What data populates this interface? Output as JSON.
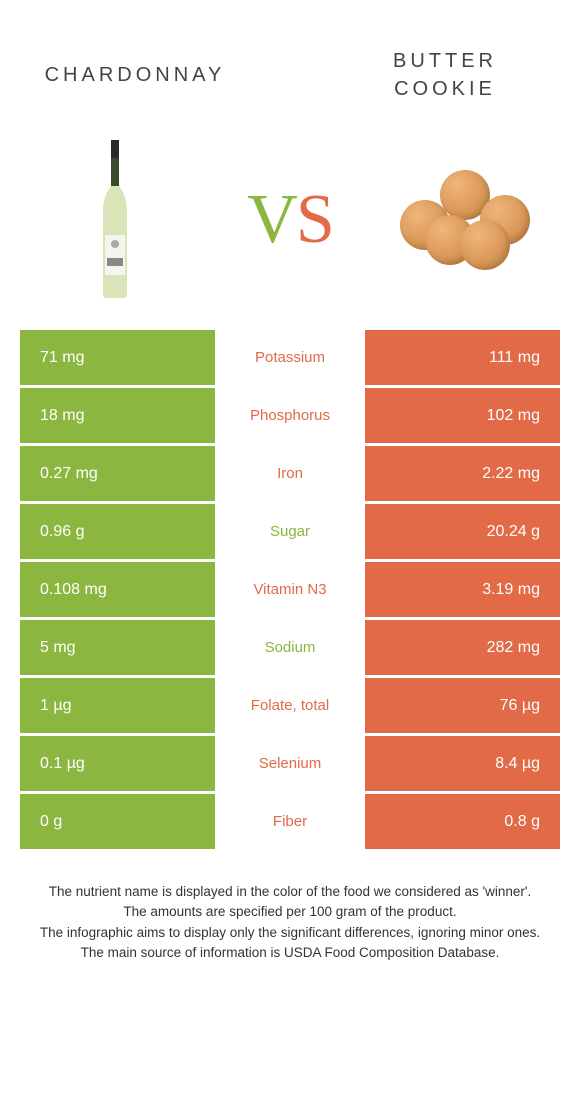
{
  "header": {
    "left_title": "Chardonnay",
    "right_title_line1": "butter",
    "right_title_line2": "cookie"
  },
  "vs": {
    "v": "V",
    "s": "S"
  },
  "colors": {
    "left": "#8bb63f",
    "right": "#e26a47",
    "text": "#333333",
    "white": "#ffffff"
  },
  "rows": [
    {
      "left": "71 mg",
      "label": "Potassium",
      "right": "111 mg",
      "winner": "right"
    },
    {
      "left": "18 mg",
      "label": "Phosphorus",
      "right": "102 mg",
      "winner": "right"
    },
    {
      "left": "0.27 mg",
      "label": "Iron",
      "right": "2.22 mg",
      "winner": "right"
    },
    {
      "left": "0.96 g",
      "label": "Sugar",
      "right": "20.24 g",
      "winner": "left"
    },
    {
      "left": "0.108 mg",
      "label": "Vitamin N3",
      "right": "3.19 mg",
      "winner": "right"
    },
    {
      "left": "5 mg",
      "label": "Sodium",
      "right": "282 mg",
      "winner": "left"
    },
    {
      "left": "1 µg",
      "label": "Folate, total",
      "right": "76 µg",
      "winner": "right"
    },
    {
      "left": "0.1 µg",
      "label": "Selenium",
      "right": "8.4 µg",
      "winner": "right"
    },
    {
      "left": "0 g",
      "label": "Fiber",
      "right": "0.8 g",
      "winner": "right"
    }
  ],
  "footer": {
    "l1": "The nutrient name is displayed in the color of the food we considered as 'winner'.",
    "l2": "The amounts are specified per 100 gram of the product.",
    "l3": "The infographic aims to display only the significant differences, ignoring minor ones.",
    "l4": "The main source of information is USDA Food Composition Database."
  }
}
